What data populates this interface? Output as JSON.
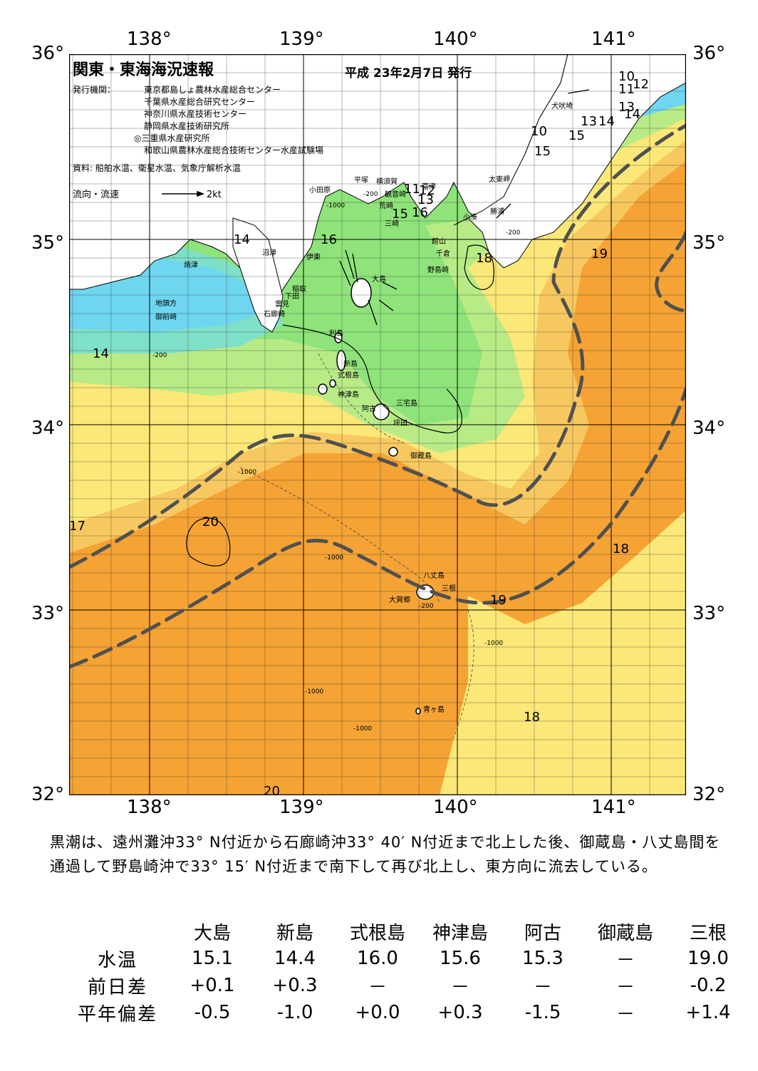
{
  "title": "関東・東海海況速報",
  "date": "平成 23年2月7日 発行",
  "issuer_label": "発行機関：",
  "issuers": [
    "東京都島しょ農林水産総合センター",
    "千葉県水産総合研究センター",
    "神奈川県水産技術センター",
    "静岡県水産技術研究所",
    "◎三重県水産研究所",
    "和歌山県農林水産総合技術センター水産試験場"
  ],
  "sources": "資料: 船舶水温、衛星水温、気象庁解析水温",
  "flow_label": "流向・流速",
  "flow_scale": "2kt",
  "axes": {
    "lat_labels": [
      "36°",
      "35°",
      "34°",
      "33°",
      "32°"
    ],
    "lon_labels": [
      "138°",
      "139°",
      "140°",
      "141°"
    ]
  },
  "places": [
    {
      "name": "犬吠埼",
      "id": "inubosaki"
    },
    {
      "name": "太東岬",
      "id": "taitomisaki"
    },
    {
      "name": "勝浦",
      "id": "katsuura"
    },
    {
      "name": "小湊",
      "id": "kominato"
    },
    {
      "name": "富津",
      "id": "futtsu"
    },
    {
      "name": "横須賀",
      "id": "yokosuka"
    },
    {
      "name": "観音崎",
      "id": "kannonzaki"
    },
    {
      "name": "平塚",
      "id": "hiratsuka"
    },
    {
      "name": "小田原",
      "id": "odawara"
    },
    {
      "name": "荒崎",
      "id": "arasaki"
    },
    {
      "name": "三崎",
      "id": "misaki"
    },
    {
      "name": "館山",
      "id": "tateyama"
    },
    {
      "name": "千倉",
      "id": "chikura"
    },
    {
      "name": "野島崎",
      "id": "nojimazaki"
    },
    {
      "name": "沼津",
      "id": "numazu"
    },
    {
      "name": "伊東",
      "id": "ito"
    },
    {
      "name": "焼津",
      "id": "yaizu"
    },
    {
      "name": "稲取",
      "id": "inatori"
    },
    {
      "name": "下田",
      "id": "shimoda"
    },
    {
      "name": "雲見",
      "id": "kumomi"
    },
    {
      "name": "石廊崎",
      "id": "irozaki"
    },
    {
      "name": "地頭方",
      "id": "jitogata"
    },
    {
      "name": "御前崎",
      "id": "omaezaki"
    },
    {
      "name": "大島",
      "id": "oshima"
    },
    {
      "name": "利島",
      "id": "toshima"
    },
    {
      "name": "新島",
      "id": "niijima"
    },
    {
      "name": "式根島",
      "id": "shikinejima"
    },
    {
      "name": "神津島",
      "id": "kozushima"
    },
    {
      "name": "阿古",
      "id": "ako"
    },
    {
      "name": "三宅島",
      "id": "miyakejima"
    },
    {
      "name": "坪田",
      "id": "tsubota"
    },
    {
      "name": "御蔵島",
      "id": "mikurajima"
    },
    {
      "name": "八丈島",
      "id": "hachijojima"
    },
    {
      "name": "三根",
      "id": "mitsune"
    },
    {
      "name": "大賀郷",
      "id": "okago"
    },
    {
      "name": "青ヶ島",
      "id": "aogashima"
    }
  ],
  "isotherm_labels": [
    {
      "value": "10",
      "id": "t1"
    },
    {
      "value": "11",
      "id": "t2"
    },
    {
      "value": "12",
      "id": "t3"
    },
    {
      "value": "13",
      "id": "t4"
    },
    {
      "value": "14",
      "id": "t5"
    },
    {
      "value": "13",
      "id": "t6"
    },
    {
      "value": "14",
      "id": "t7"
    },
    {
      "value": "10",
      "id": "t8"
    },
    {
      "value": "15",
      "id": "t9"
    },
    {
      "value": "15",
      "id": "t10"
    },
    {
      "value": "11",
      "id": "t11"
    },
    {
      "value": "12",
      "id": "t12"
    },
    {
      "value": "13",
      "id": "t13"
    },
    {
      "value": "15",
      "id": "t14"
    },
    {
      "value": "16",
      "id": "t15"
    },
    {
      "value": "16",
      "id": "t16"
    },
    {
      "value": "14",
      "id": "t17"
    },
    {
      "value": "14",
      "id": "t18"
    },
    {
      "value": "18",
      "id": "t19"
    },
    {
      "value": "19",
      "id": "t20"
    },
    {
      "value": "17",
      "id": "t21"
    },
    {
      "value": "20",
      "id": "t22"
    },
    {
      "value": "18",
      "id": "t23"
    },
    {
      "value": "19",
      "id": "t24"
    },
    {
      "value": "18",
      "id": "t25"
    },
    {
      "value": "20",
      "id": "t26"
    }
  ],
  "depth_labels": [
    "-200",
    "-1000"
  ],
  "summary": "黒潮は、遠州灘沖33° N付近から石廊崎沖33° 40′ N付近まで北上した後、御蔵島・八丈島間を通過して野島崎沖で33° 15′ N付近まで南下して再び北上し、東方向に流去している。",
  "table": {
    "columns": [
      "大島",
      "新島",
      "式根島",
      "神津島",
      "阿古",
      "御蔵島",
      "三根"
    ],
    "rows": [
      {
        "label": "水温",
        "values": [
          "15.1",
          "14.4",
          "16.0",
          "15.6",
          "15.3",
          "－",
          "19.0"
        ]
      },
      {
        "label": "前日差",
        "values": [
          "+0.1",
          "+0.3",
          "－",
          "－",
          "－",
          "－",
          "-0.2"
        ]
      },
      {
        "label": "平年偏差",
        "values": [
          "-0.5",
          "-1.0",
          "+0.0",
          "+0.3",
          "-1.5",
          "－",
          "+1.4"
        ]
      }
    ]
  },
  "colors": {
    "cold": "#1f8fe8",
    "cyan": "#6fd6f0",
    "teal": "#7fe0c8",
    "green": "#8ee37a",
    "lightgreen": "#b8eb86",
    "yellow": "#fbe878",
    "lightorange": "#f8c860",
    "orange": "#f5a334",
    "land": "#ffffff",
    "kuroshio": "#505050"
  }
}
